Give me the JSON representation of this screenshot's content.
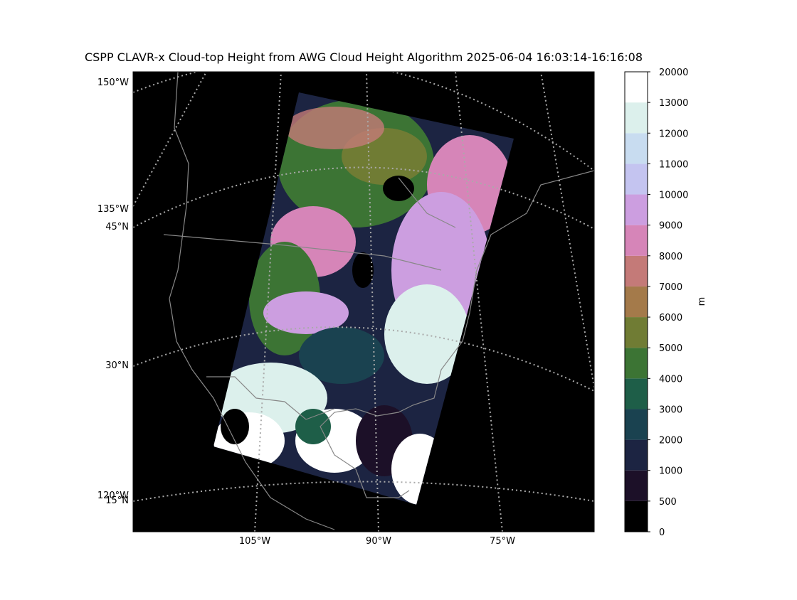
{
  "title": "CSPP CLAVR-x Cloud-top Height from AWG Cloud Height Algorithm 2025-06-04 16:03:14-16:16:08",
  "map": {
    "left_labels": [
      "150°W",
      "135°W",
      "45°N",
      "30°N",
      "120°W",
      "15°N"
    ],
    "bottom_labels": [
      "105°W",
      "90°W",
      "75°W"
    ]
  },
  "colorbar": {
    "bounds": [
      0,
      500,
      1000,
      2000,
      3000,
      4000,
      5000,
      6000,
      7000,
      8000,
      9000,
      10000,
      11000,
      12000,
      13000,
      20000
    ],
    "colors": [
      "#000000",
      "#1c1028",
      "#1c2442",
      "#1a4250",
      "#1e5e48",
      "#3c7434",
      "#707c34",
      "#a47a4a",
      "#c47a78",
      "#d685b8",
      "#cc9ee0",
      "#c4c4f0",
      "#c8dcf0",
      "#dcf0ec",
      "#ffffff"
    ],
    "label": "m"
  }
}
